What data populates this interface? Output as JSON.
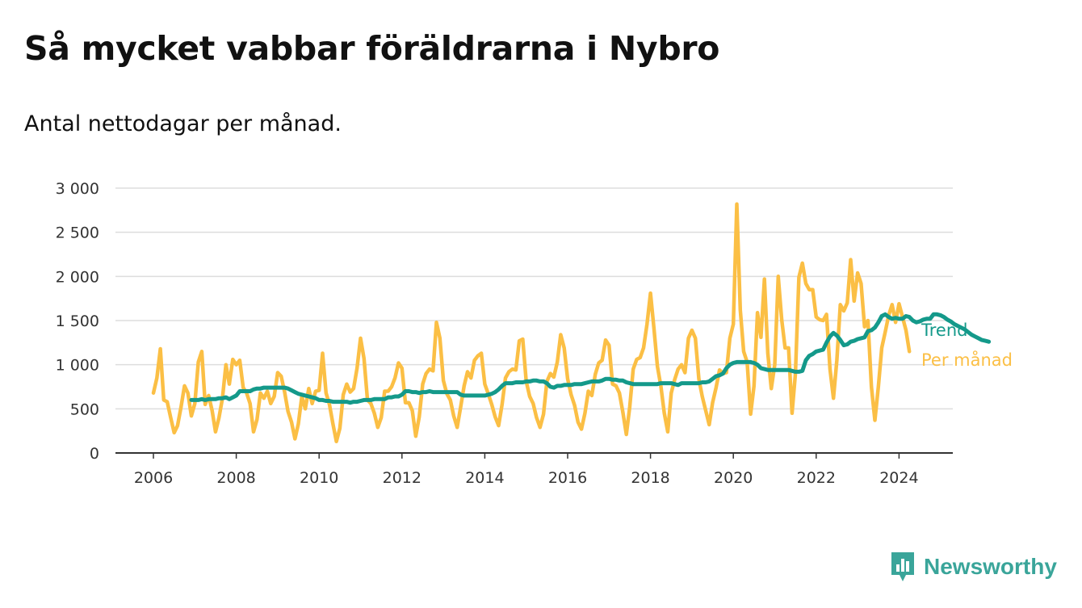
{
  "title": "Så mycket vabbar föräldrarna i Nybro",
  "subtitle": "Antal nettodagar per månad.",
  "brand": {
    "name": "Newsworthy",
    "icon": "newsworthy-logo-icon",
    "color": "#3aa59a"
  },
  "chart_data": {
    "type": "line",
    "x_unit": "month",
    "x_axis_ticks": [
      "2006",
      "2008",
      "2010",
      "2012",
      "2014",
      "2016",
      "2018",
      "2020",
      "2022",
      "2024"
    ],
    "y_axis_ticks": [
      "0",
      "500",
      "1 000",
      "1 500",
      "2 000",
      "2 500",
      "3 000"
    ],
    "ylim": [
      0,
      3000
    ],
    "grid": true,
    "legend": "direct labels at right end of lines",
    "series": [
      {
        "name": "Per månad",
        "color": "#fbbf45",
        "start": "2006-01",
        "values": [
          680,
          850,
          1180,
          600,
          580,
          400,
          230,
          310,
          520,
          760,
          680,
          420,
          560,
          1030,
          1150,
          550,
          650,
          480,
          240,
          400,
          620,
          1000,
          780,
          1060,
          1000,
          1050,
          740,
          680,
          560,
          240,
          380,
          680,
          620,
          700,
          560,
          640,
          910,
          870,
          690,
          470,
          350,
          160,
          330,
          640,
          500,
          730,
          560,
          700,
          710,
          1130,
          680,
          550,
          330,
          130,
          280,
          660,
          780,
          690,
          730,
          960,
          1300,
          1070,
          600,
          560,
          450,
          290,
          400,
          700,
          700,
          750,
          850,
          1020,
          960,
          570,
          570,
          480,
          190,
          410,
          780,
          900,
          950,
          930,
          1480,
          1300,
          820,
          670,
          600,
          420,
          290,
          520,
          760,
          920,
          850,
          1050,
          1100,
          1130,
          780,
          670,
          550,
          410,
          310,
          550,
          850,
          920,
          950,
          940,
          1270,
          1290,
          810,
          640,
          560,
          400,
          290,
          440,
          810,
          900,
          860,
          1030,
          1340,
          1190,
          840,
          660,
          540,
          350,
          270,
          450,
          700,
          650,
          890,
          1020,
          1050,
          1280,
          1220,
          780,
          760,
          680,
          460,
          210,
          520,
          950,
          1060,
          1080,
          1190,
          1460,
          1810,
          1410,
          980,
          760,
          450,
          240,
          680,
          830,
          950,
          1000,
          910,
          1300,
          1390,
          1300,
          840,
          640,
          480,
          320,
          570,
          740,
          940,
          900,
          910,
          1300,
          1460,
          2820,
          1620,
          1150,
          1030,
          440,
          760,
          1590,
          1310,
          1970,
          1130,
          730,
          1000,
          2000,
          1510,
          1190,
          1190,
          450,
          900,
          1990,
          2150,
          1920,
          1850,
          1850,
          1540,
          1510,
          1500,
          1570,
          950,
          620,
          1050,
          1680,
          1610,
          1700,
          2190,
          1720,
          2040,
          1920,
          1430,
          1500,
          750,
          370,
          750,
          1190,
          1370,
          1560,
          1680,
          1480,
          1690,
          1540,
          1390,
          1150
        ]
      },
      {
        "name": "Trend",
        "color": "#14998a",
        "start": "2006-12",
        "values": [
          600,
          600,
          600,
          610,
          600,
          610,
          610,
          610,
          620,
          620,
          630,
          610,
          630,
          650,
          700,
          700,
          700,
          700,
          720,
          730,
          730,
          740,
          740,
          740,
          740,
          740,
          740,
          740,
          730,
          710,
          690,
          670,
          660,
          650,
          640,
          630,
          620,
          600,
          600,
          590,
          590,
          580,
          580,
          580,
          580,
          580,
          570,
          580,
          580,
          590,
          600,
          600,
          600,
          610,
          610,
          610,
          610,
          630,
          630,
          640,
          640,
          660,
          700,
          700,
          690,
          690,
          680,
          690,
          690,
          700,
          690,
          690,
          690,
          690,
          690,
          690,
          690,
          690,
          660,
          650,
          650,
          650,
          650,
          650,
          650,
          650,
          660,
          670,
          690,
          720,
          760,
          790,
          790,
          790,
          800,
          800,
          800,
          810,
          810,
          820,
          820,
          810,
          810,
          790,
          750,
          740,
          760,
          760,
          770,
          770,
          770,
          780,
          780,
          780,
          790,
          800,
          810,
          810,
          810,
          820,
          840,
          840,
          830,
          830,
          820,
          820,
          800,
          790,
          780,
          780,
          780,
          780,
          780,
          780,
          780,
          780,
          790,
          790,
          790,
          790,
          780,
          770,
          790,
          790,
          790,
          790,
          790,
          790,
          800,
          800,
          810,
          840,
          870,
          880,
          900,
          960,
          1000,
          1020,
          1030,
          1030,
          1030,
          1030,
          1030,
          1020,
          1000,
          960,
          950,
          940,
          940,
          940,
          940,
          940,
          940,
          940,
          930,
          920,
          920,
          930,
          1050,
          1100,
          1120,
          1150,
          1160,
          1170,
          1250,
          1320,
          1360,
          1330,
          1280,
          1220,
          1230,
          1260,
          1270,
          1290,
          1300,
          1310,
          1380,
          1390,
          1420,
          1480,
          1550,
          1570,
          1540,
          1520,
          1530,
          1520,
          1520,
          1550,
          1540,
          1500,
          1480,
          1490,
          1510,
          1520,
          1520,
          1570,
          1570,
          1560,
          1540,
          1510,
          1490,
          1460,
          1440,
          1420,
          1400,
          1370,
          1340,
          1320,
          1300,
          1280,
          1270,
          1260
        ]
      }
    ]
  }
}
